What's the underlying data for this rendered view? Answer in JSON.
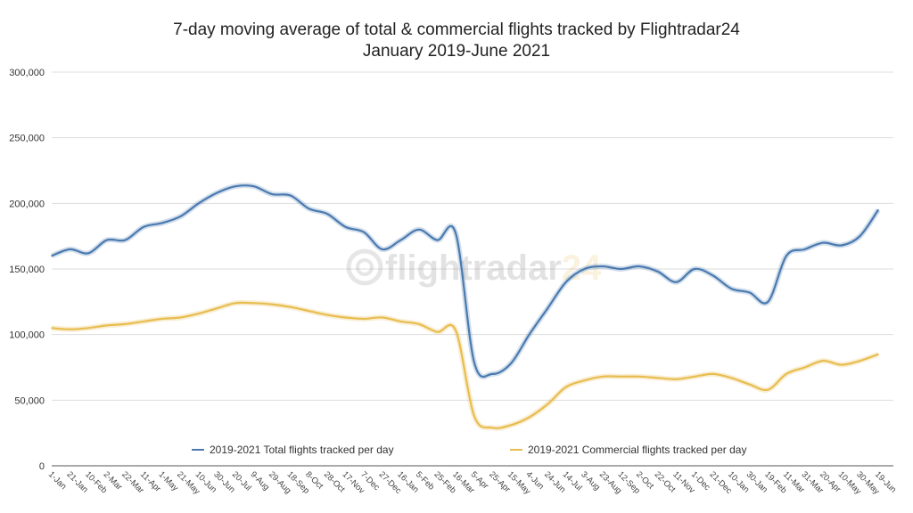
{
  "chart_data": {
    "type": "line",
    "title": "7-day moving average of total & commercial flights tracked by Flightradar24",
    "subtitle": "January 2019-June 2021",
    "xlabel": "",
    "ylabel": "",
    "ylim": [
      0,
      300000
    ],
    "yticks": [
      "0",
      "50,000",
      "100,000",
      "150,000",
      "200,000",
      "250,000",
      "300,000"
    ],
    "grid": true,
    "legend_position": "bottom",
    "categories": [
      "1-Jan",
      "21-Jan",
      "10-Feb",
      "2-Mar",
      "22-Mar",
      "11-Apr",
      "1-May",
      "21-May",
      "10-Jun",
      "30-Jun",
      "20-Jul",
      "9-Aug",
      "29-Aug",
      "18-Sep",
      "8-Oct",
      "28-Oct",
      "17-Nov",
      "7-Dec",
      "27-Dec",
      "16-Jan",
      "5-Feb",
      "25-Feb",
      "16-Mar",
      "5-Apr",
      "25-Apr",
      "15-May",
      "4-Jun",
      "24-Jun",
      "14-Jul",
      "3-Aug",
      "23-Aug",
      "12-Sep",
      "2-Oct",
      "22-Oct",
      "11-Nov",
      "1-Dec",
      "21-Dec",
      "10-Jan",
      "30-Jan",
      "19-Feb",
      "11-Mar",
      "31-Mar",
      "20-Apr",
      "10-May",
      "30-May",
      "19-Jun"
    ],
    "series": [
      {
        "name": "2019-2021 Total flights tracked per day",
        "color": "#4a7ab0",
        "values": [
          160000,
          165000,
          162000,
          172000,
          172000,
          182000,
          185000,
          190000,
          200000,
          208000,
          213000,
          213000,
          207000,
          206000,
          196000,
          192000,
          182000,
          178000,
          165000,
          172000,
          180000,
          172000,
          177000,
          79000,
          70000,
          78000,
          100000,
          120000,
          140000,
          150000,
          152000,
          150000,
          152000,
          148000,
          140000,
          150000,
          145000,
          135000,
          132000,
          125000,
          160000,
          165000,
          170000,
          168000,
          175000,
          195000
        ]
      },
      {
        "name": "2019-2021 Commercial flights tracked per day",
        "color": "#e8bd4f",
        "values": [
          105000,
          104000,
          105000,
          107000,
          108000,
          110000,
          112000,
          113000,
          116000,
          120000,
          124000,
          124000,
          123000,
          121000,
          118000,
          115000,
          113000,
          112000,
          113000,
          110000,
          108000,
          102000,
          103000,
          38000,
          29000,
          31000,
          37000,
          47000,
          60000,
          65000,
          68000,
          68000,
          68000,
          67000,
          66000,
          68000,
          70000,
          67000,
          62000,
          58000,
          70000,
          75000,
          80000,
          77000,
          80000,
          85000
        ]
      }
    ]
  },
  "watermark": "flightradar24"
}
